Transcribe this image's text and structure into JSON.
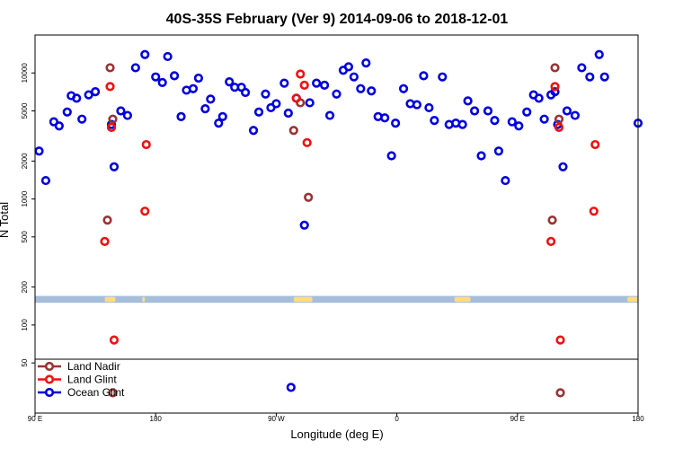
{
  "chart_data": {
    "type": "scatter",
    "title": "40S-35S February (Ver 9)   2014-09-06 to 2018-12-01",
    "xlabel": "Longitude (deg E)",
    "ylabel": "N Total",
    "x_scale": "linear",
    "y_scale": "log",
    "xlim": [
      90,
      540
    ],
    "ylim": [
      20,
      20000
    ],
    "x_ticks": [
      {
        "value": 90,
        "label": "90 E"
      },
      {
        "value": 180,
        "label": "180"
      },
      {
        "value": 270,
        "label": "90 W"
      },
      {
        "value": 360,
        "label": "0"
      },
      {
        "value": 450,
        "label": "90 E"
      },
      {
        "value": 540,
        "label": "180"
      }
    ],
    "y_ticks": [
      {
        "value": 50,
        "label": "50"
      },
      {
        "value": 100,
        "label": "100"
      },
      {
        "value": 200,
        "label": "200"
      },
      {
        "value": 500,
        "label": "500"
      },
      {
        "value": 1000,
        "label": "1000"
      },
      {
        "value": 2000,
        "label": "2000"
      },
      {
        "value": 5000,
        "label": "5000"
      },
      {
        "value": 10000,
        "label": "10000"
      }
    ],
    "legend_position": "bottom-left",
    "map_strip_y_range": [
      150,
      170
    ],
    "map_strip_land_longitudes": [
      [
        142,
        150
      ],
      [
        170,
        172
      ],
      [
        283,
        297
      ],
      [
        403,
        415
      ],
      [
        532,
        540
      ]
    ],
    "colors": {
      "Land Nadir": "#993333",
      "Land Glint": "#ee1111",
      "Ocean Glint": "#0000dd",
      "map_ocean": "#a6bddb",
      "map_land": "#ffdd77"
    },
    "series": [
      {
        "name": "Land Nadir",
        "points": [
          [
            144,
            680
          ],
          [
            146,
            11000
          ],
          [
            148,
            4300
          ],
          [
            148,
            29
          ],
          [
            283,
            3500
          ],
          [
            288,
            5800
          ],
          [
            294,
            1030
          ],
          [
            476,
            680
          ],
          [
            478,
            11000
          ],
          [
            481,
            4300
          ],
          [
            482,
            29
          ]
        ]
      },
      {
        "name": "Land Glint",
        "points": [
          [
            142,
            460
          ],
          [
            146,
            7800
          ],
          [
            147,
            3700
          ],
          [
            149,
            76
          ],
          [
            172,
            800
          ],
          [
            173,
            2700
          ],
          [
            285,
            6300
          ],
          [
            288,
            9800
          ],
          [
            291,
            8000
          ],
          [
            293,
            2800
          ],
          [
            475,
            460
          ],
          [
            478,
            7800
          ],
          [
            481,
            3700
          ],
          [
            482,
            76
          ],
          [
            507,
            800
          ],
          [
            508,
            2700
          ]
        ]
      },
      {
        "name": "Ocean Glint",
        "points": [
          [
            93,
            2400
          ],
          [
            98,
            1400
          ],
          [
            104,
            4100
          ],
          [
            108,
            3800
          ],
          [
            114,
            4900
          ],
          [
            117,
            6600
          ],
          [
            121,
            6300
          ],
          [
            125,
            4300
          ],
          [
            130,
            6700
          ],
          [
            135,
            7100
          ],
          [
            147,
            3900
          ],
          [
            149,
            1800
          ],
          [
            154,
            5000
          ],
          [
            159,
            4600
          ],
          [
            165,
            11000
          ],
          [
            172,
            14000
          ],
          [
            180,
            9300
          ],
          [
            185,
            8400
          ],
          [
            189,
            13500
          ],
          [
            194,
            9500
          ],
          [
            199,
            4500
          ],
          [
            203,
            7300
          ],
          [
            208,
            7500
          ],
          [
            212,
            9100
          ],
          [
            217,
            5200
          ],
          [
            221,
            6200
          ],
          [
            227,
            4000
          ],
          [
            230,
            4500
          ],
          [
            235,
            8500
          ],
          [
            239,
            7700
          ],
          [
            244,
            7700
          ],
          [
            247,
            7000
          ],
          [
            253,
            3500
          ],
          [
            257,
            4900
          ],
          [
            262,
            6800
          ],
          [
            266,
            5300
          ],
          [
            270,
            5700
          ],
          [
            276,
            8300
          ],
          [
            279,
            4800
          ],
          [
            281,
            32
          ],
          [
            285,
            6300
          ],
          [
            291,
            620
          ],
          [
            295,
            5800
          ],
          [
            300,
            8300
          ],
          [
            306,
            8000
          ],
          [
            310,
            4600
          ],
          [
            315,
            6800
          ],
          [
            320,
            10500
          ],
          [
            324,
            11200
          ],
          [
            328,
            9300
          ],
          [
            333,
            7500
          ],
          [
            337,
            12000
          ],
          [
            341,
            7200
          ],
          [
            346,
            4500
          ],
          [
            351,
            4400
          ],
          [
            356,
            2200
          ],
          [
            359,
            4000
          ],
          [
            365,
            7500
          ],
          [
            370,
            5700
          ],
          [
            375,
            5600
          ],
          [
            380,
            9500
          ],
          [
            384,
            5300
          ],
          [
            388,
            4200
          ],
          [
            394,
            9300
          ],
          [
            399,
            3900
          ],
          [
            404,
            4000
          ],
          [
            409,
            3900
          ],
          [
            413,
            6000
          ],
          [
            418,
            5000
          ],
          [
            423,
            2200
          ],
          [
            428,
            5000
          ],
          [
            433,
            4200
          ],
          [
            436,
            2400
          ],
          [
            441,
            1400
          ],
          [
            446,
            4100
          ],
          [
            451,
            3800
          ],
          [
            457,
            4900
          ],
          [
            462,
            6700
          ],
          [
            466,
            6300
          ],
          [
            470,
            4300
          ],
          [
            475,
            6700
          ],
          [
            478,
            7100
          ],
          [
            480,
            3900
          ],
          [
            484,
            1800
          ],
          [
            487,
            5000
          ],
          [
            493,
            4600
          ],
          [
            498,
            11000
          ],
          [
            504,
            9300
          ],
          [
            511,
            14000
          ],
          [
            515,
            9300
          ],
          [
            540,
            4000
          ]
        ]
      }
    ]
  }
}
